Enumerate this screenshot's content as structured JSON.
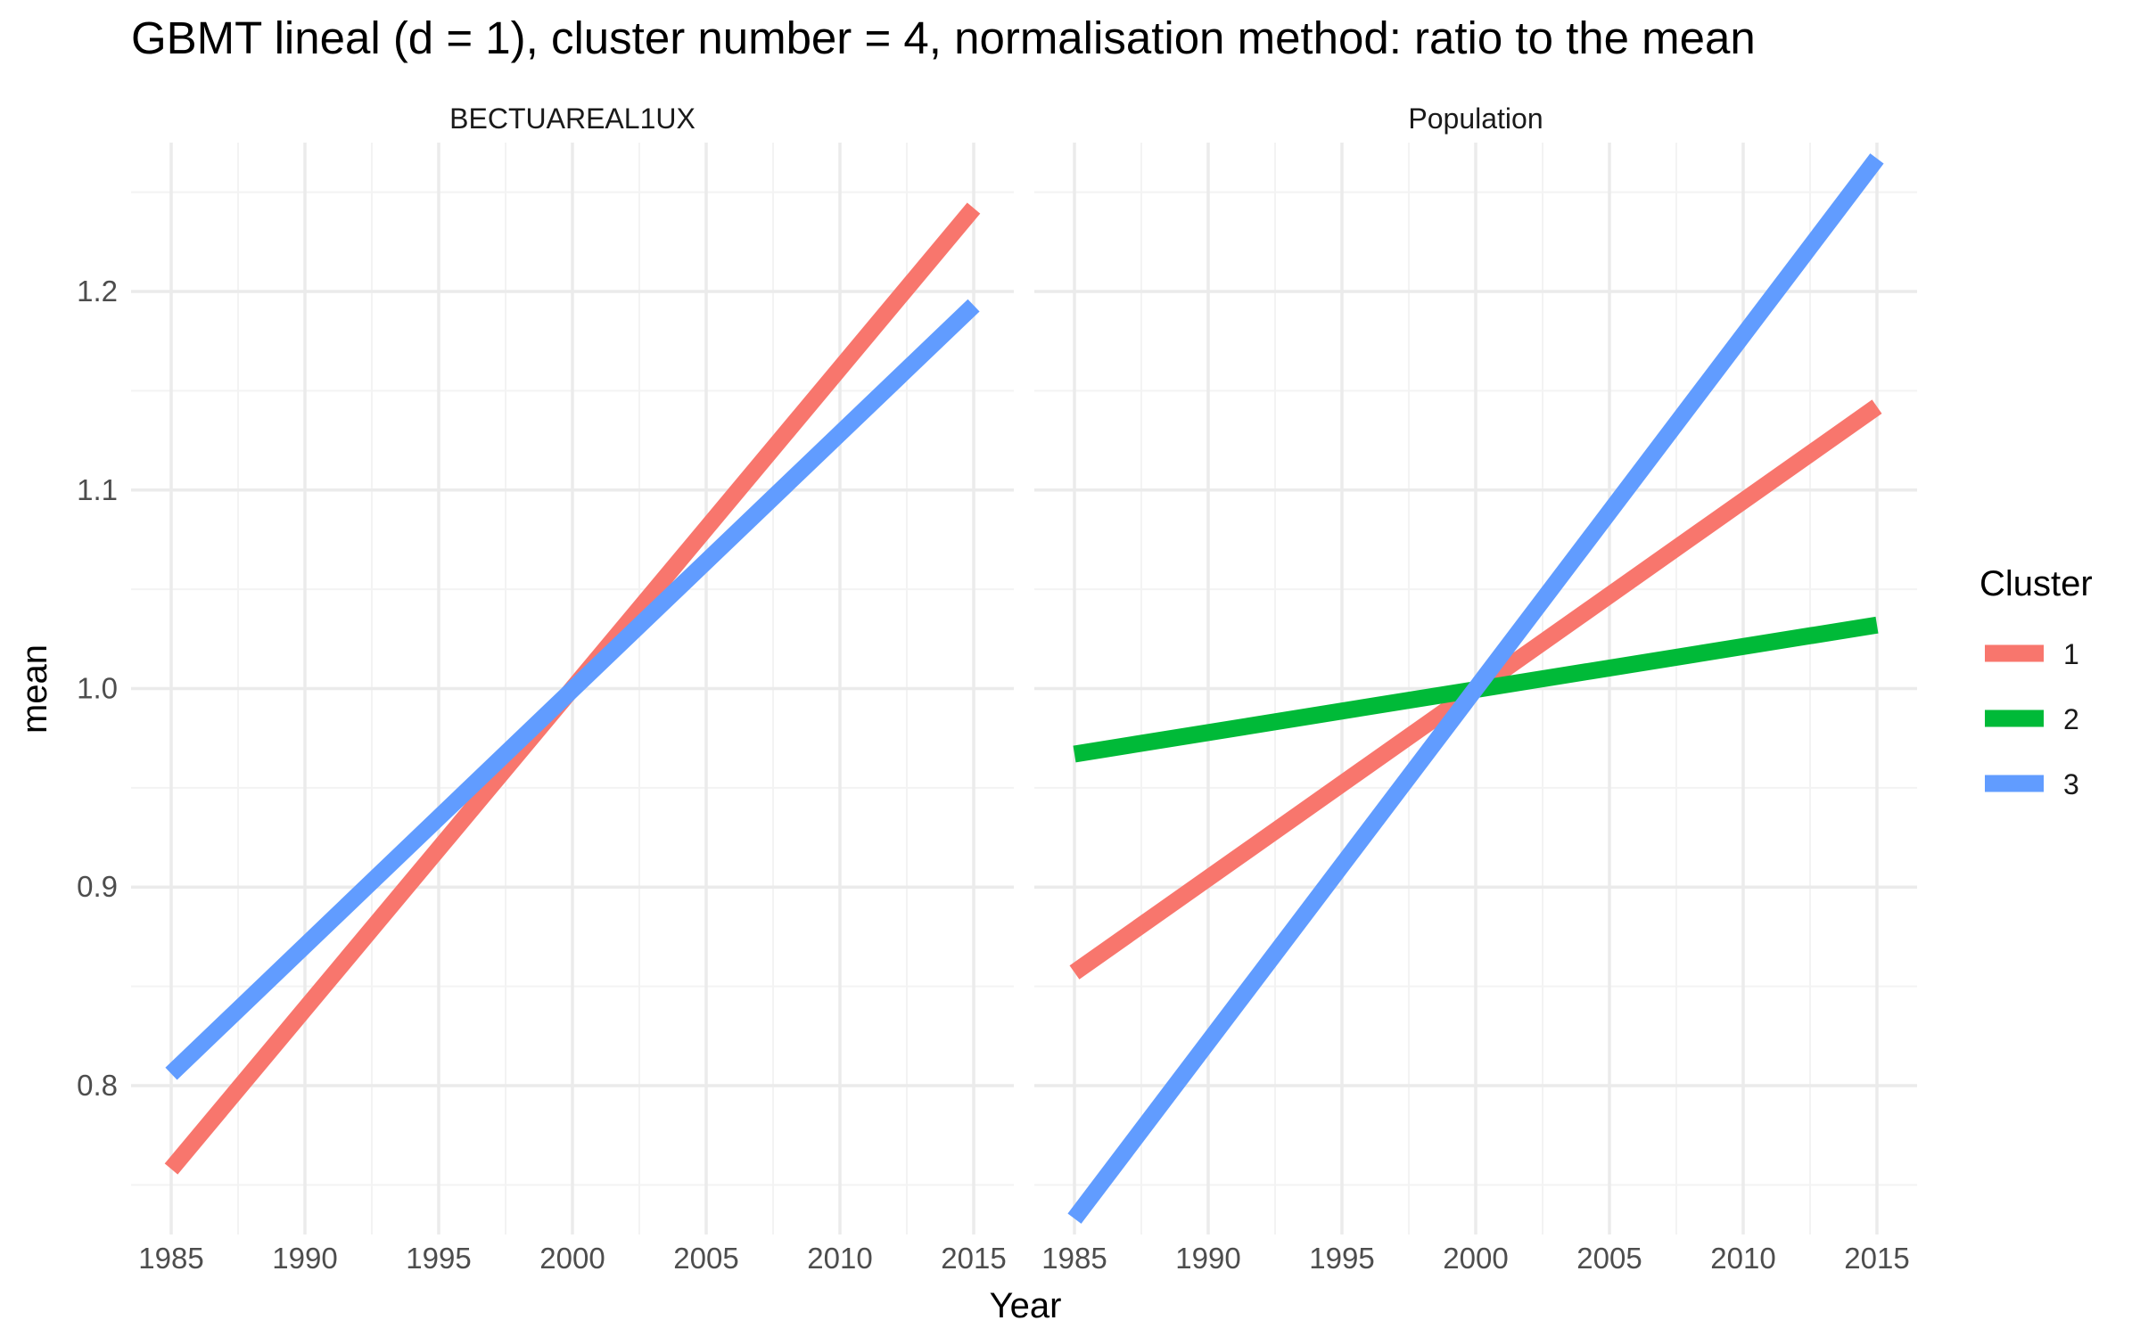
{
  "title": "GBMT lineal (d = 1), cluster number = 4, normalisation method: ratio to the mean",
  "chart_data": {
    "type": "line",
    "title": "GBMT lineal (d = 1), cluster number = 4, normalisation method: ratio to the mean",
    "xlabel": "Year",
    "ylabel": "mean",
    "xlim": [
      1983.5,
      2016.5
    ],
    "ylim": [
      0.725,
      1.275
    ],
    "x_ticks": [
      1985,
      1990,
      1995,
      2000,
      2005,
      2010,
      2015
    ],
    "x_tick_labels": [
      "1985",
      "1990",
      "1995",
      "2000",
      "2005",
      "2010",
      "2015"
    ],
    "y_ticks": [
      0.8,
      0.9,
      1.0,
      1.1,
      1.2
    ],
    "y_tick_labels": [
      "0.8",
      "0.9",
      "1.0",
      "1.1",
      "1.2"
    ],
    "grid": true,
    "legend": {
      "title": "Cluster",
      "position": "right",
      "entries": [
        {
          "label": "1",
          "color": "#F8766D"
        },
        {
          "label": "2",
          "color": "#00BA38"
        },
        {
          "label": "3",
          "color": "#619CFF"
        }
      ]
    },
    "panels": [
      {
        "strip": "BECTUAREAL1UX",
        "series": [
          {
            "name": "1",
            "color": "#F8766D",
            "x": [
              1985,
              2015
            ],
            "y": [
              0.758,
              1.242
            ]
          },
          {
            "name": "3",
            "color": "#619CFF",
            "x": [
              1985,
              2015
            ],
            "y": [
              0.806,
              1.193
            ]
          }
        ]
      },
      {
        "strip": "Population",
        "series": [
          {
            "name": "1",
            "color": "#F8766D",
            "x": [
              1985,
              2015
            ],
            "y": [
              0.857,
              1.142
            ]
          },
          {
            "name": "2",
            "color": "#00BA38",
            "x": [
              1985,
              2015
            ],
            "y": [
              0.967,
              1.032
            ]
          },
          {
            "name": "3",
            "color": "#619CFF",
            "x": [
              1985,
              2015
            ],
            "y": [
              0.733,
              1.267
            ]
          }
        ]
      }
    ]
  }
}
